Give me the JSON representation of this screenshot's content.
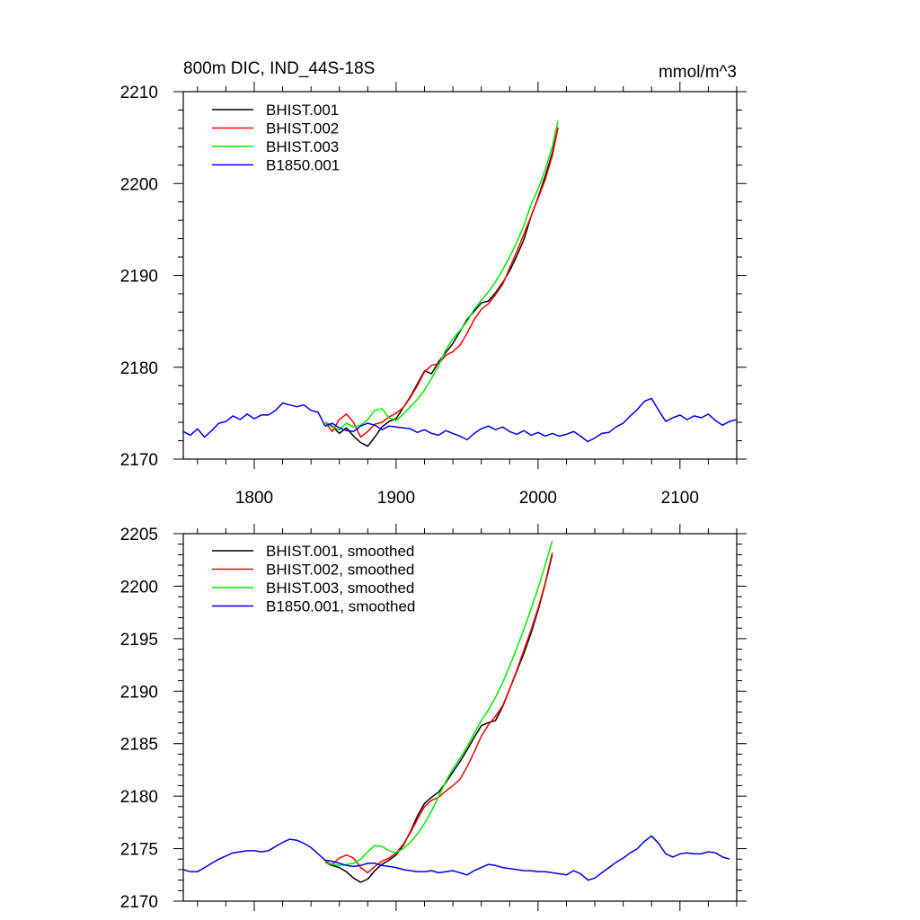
{
  "chart_data": [
    {
      "type": "line",
      "title": "800m DIC, IND_44S-18S",
      "units": "mmol/m^3",
      "xlim": [
        1750,
        2140
      ],
      "ylim": [
        2170,
        2210
      ],
      "xticks": [
        1800,
        1900,
        2000,
        2100
      ],
      "yticks": [
        2170,
        2180,
        2190,
        2200,
        2210
      ],
      "show_x_tick_labels": true,
      "legend_position": "top-left",
      "colors": {
        "axis": "#000000"
      },
      "series": [
        {
          "name": "BHIST.001",
          "color": "#000000",
          "x": [
            1850,
            1855,
            1860,
            1865,
            1870,
            1875,
            1880,
            1885,
            1890,
            1895,
            1900,
            1905,
            1910,
            1915,
            1920,
            1925,
            1930,
            1935,
            1940,
            1945,
            1950,
            1955,
            1960,
            1965,
            1970,
            1975,
            1980,
            1985,
            1990,
            1995,
            2000,
            2005,
            2010,
            2014
          ],
          "y": [
            2174.0,
            2173.6,
            2172.8,
            2173.4,
            2172.5,
            2171.8,
            2171.4,
            2172.4,
            2173.5,
            2174.1,
            2174.4,
            2175.6,
            2176.8,
            2178.2,
            2179.6,
            2179.3,
            2180.6,
            2181.6,
            2182.6,
            2183.9,
            2185.2,
            2186.1,
            2187.0,
            2187.2,
            2188.1,
            2189.2,
            2190.5,
            2192.1,
            2193.9,
            2196.4,
            2198.5,
            2200.8,
            2203.3,
            2206.1
          ]
        },
        {
          "name": "BHIST.002",
          "color": "#ff0000",
          "x": [
            1850,
            1855,
            1860,
            1865,
            1870,
            1875,
            1880,
            1885,
            1890,
            1895,
            1900,
            1905,
            1910,
            1915,
            1920,
            1925,
            1930,
            1935,
            1940,
            1945,
            1950,
            1955,
            1960,
            1965,
            1970,
            1975,
            1980,
            1985,
            1990,
            1995,
            2000,
            2005,
            2010,
            2014
          ],
          "y": [
            2174.0,
            2173.0,
            2174.3,
            2174.9,
            2174.0,
            2172.4,
            2173.0,
            2173.8,
            2174.0,
            2174.6,
            2175.0,
            2175.6,
            2176.7,
            2178.0,
            2179.5,
            2180.2,
            2180.4,
            2181.3,
            2181.7,
            2182.4,
            2183.7,
            2185.2,
            2186.3,
            2186.9,
            2187.9,
            2189.0,
            2190.8,
            2192.6,
            2194.5,
            2196.4,
            2198.4,
            2200.4,
            2203.0,
            2206.0
          ]
        },
        {
          "name": "BHIST.003",
          "color": "#00ee00",
          "x": [
            1850,
            1855,
            1860,
            1865,
            1870,
            1875,
            1880,
            1885,
            1890,
            1895,
            1900,
            1905,
            1910,
            1915,
            1920,
            1925,
            1930,
            1935,
            1940,
            1945,
            1950,
            1955,
            1960,
            1965,
            1970,
            1975,
            1980,
            1985,
            1990,
            1995,
            2000,
            2005,
            2010,
            2014
          ],
          "y": [
            2174.0,
            2173.5,
            2173.2,
            2173.9,
            2173.5,
            2173.7,
            2174.3,
            2175.3,
            2175.5,
            2174.5,
            2174.2,
            2174.9,
            2175.7,
            2176.5,
            2177.5,
            2178.8,
            2180.2,
            2181.9,
            2183.1,
            2184.0,
            2185.0,
            2186.3,
            2187.3,
            2188.2,
            2189.3,
            2190.6,
            2192.0,
            2193.6,
            2195.4,
            2197.7,
            2199.4,
            2201.5,
            2204.0,
            2206.8
          ]
        },
        {
          "name": "B1850.001",
          "color": "#0000ee",
          "x": [
            1750,
            1755,
            1760,
            1765,
            1770,
            1775,
            1780,
            1785,
            1790,
            1795,
            1800,
            1805,
            1810,
            1815,
            1820,
            1825,
            1830,
            1835,
            1840,
            1845,
            1850,
            1855,
            1860,
            1865,
            1870,
            1875,
            1880,
            1885,
            1890,
            1895,
            1900,
            1905,
            1910,
            1915,
            1920,
            1925,
            1930,
            1935,
            1940,
            1945,
            1950,
            1955,
            1960,
            1965,
            1970,
            1975,
            1980,
            1985,
            1990,
            1995,
            2000,
            2005,
            2010,
            2015,
            2020,
            2025,
            2030,
            2035,
            2040,
            2045,
            2050,
            2055,
            2060,
            2065,
            2070,
            2075,
            2080,
            2085,
            2090,
            2095,
            2100,
            2105,
            2110,
            2115,
            2120,
            2125,
            2130,
            2135,
            2140
          ],
          "y": [
            2173.0,
            2172.6,
            2173.3,
            2172.4,
            2173.1,
            2173.9,
            2174.1,
            2174.7,
            2174.3,
            2174.9,
            2174.4,
            2174.8,
            2174.8,
            2175.3,
            2176.1,
            2175.9,
            2175.7,
            2175.9,
            2175.3,
            2175.1,
            2173.6,
            2173.9,
            2173.4,
            2173.1,
            2173.0,
            2173.6,
            2173.9,
            2173.7,
            2173.2,
            2173.6,
            2173.5,
            2173.4,
            2173.3,
            2172.9,
            2173.2,
            2172.8,
            2172.6,
            2173.1,
            2172.8,
            2172.5,
            2172.1,
            2172.8,
            2173.3,
            2173.6,
            2173.2,
            2173.5,
            2173.0,
            2172.7,
            2173.1,
            2172.6,
            2172.9,
            2172.5,
            2172.8,
            2172.5,
            2172.7,
            2173.0,
            2172.5,
            2171.9,
            2172.3,
            2172.8,
            2172.9,
            2173.5,
            2173.9,
            2174.7,
            2175.4,
            2176.3,
            2176.6,
            2175.3,
            2174.1,
            2174.5,
            2174.8,
            2174.3,
            2174.7,
            2174.5,
            2174.9,
            2174.2,
            2173.7,
            2174.1,
            2174.3
          ]
        }
      ]
    },
    {
      "type": "line",
      "title": "",
      "xlim": [
        1750,
        2140
      ],
      "ylim": [
        2170,
        2205
      ],
      "xticks": [
        1800,
        1900,
        2000,
        2100
      ],
      "yticks": [
        2170,
        2175,
        2180,
        2185,
        2190,
        2195,
        2200,
        2205
      ],
      "show_x_tick_labels": false,
      "legend_position": "top-left",
      "colors": {
        "axis": "#000000"
      },
      "series": [
        {
          "name": "BHIST.001, smoothed",
          "color": "#000000",
          "x": [
            1850,
            1855,
            1860,
            1865,
            1870,
            1875,
            1880,
            1885,
            1890,
            1895,
            1900,
            1905,
            1910,
            1915,
            1920,
            1925,
            1930,
            1935,
            1940,
            1945,
            1950,
            1955,
            1960,
            1965,
            1970,
            1975,
            1980,
            1985,
            1990,
            1995,
            2000,
            2005,
            2010
          ],
          "y": [
            2173.7,
            2173.4,
            2173.2,
            2172.8,
            2172.2,
            2171.8,
            2172.1,
            2172.9,
            2173.5,
            2173.9,
            2174.4,
            2175.3,
            2176.6,
            2178.1,
            2179.3,
            2179.9,
            2180.4,
            2181.3,
            2182.3,
            2183.3,
            2184.4,
            2185.6,
            2186.7,
            2187.0,
            2187.2,
            2188.5,
            2190.2,
            2191.9,
            2193.6,
            2195.5,
            2197.7,
            2200.2,
            2203.0
          ]
        },
        {
          "name": "BHIST.002, smoothed",
          "color": "#ff0000",
          "x": [
            1850,
            1855,
            1860,
            1865,
            1870,
            1875,
            1880,
            1885,
            1890,
            1895,
            1900,
            1905,
            1910,
            1915,
            1920,
            1925,
            1930,
            1935,
            1940,
            1945,
            1950,
            1955,
            1960,
            1965,
            1970,
            1975,
            1980,
            1985,
            1990,
            1995,
            2000,
            2005,
            2010
          ],
          "y": [
            2173.8,
            2173.5,
            2174.1,
            2174.4,
            2174.1,
            2173.2,
            2172.7,
            2173.3,
            2173.8,
            2174.1,
            2174.6,
            2175.4,
            2176.5,
            2177.8,
            2179.0,
            2179.6,
            2179.9,
            2180.5,
            2181.0,
            2181.6,
            2182.8,
            2184.2,
            2185.7,
            2186.8,
            2187.6,
            2188.6,
            2190.2,
            2192.0,
            2193.9,
            2195.8,
            2197.9,
            2200.3,
            2203.2
          ]
        },
        {
          "name": "BHIST.003, smoothed",
          "color": "#00ee00",
          "x": [
            1850,
            1855,
            1860,
            1865,
            1870,
            1875,
            1880,
            1885,
            1890,
            1895,
            1900,
            1905,
            1910,
            1915,
            1920,
            1925,
            1930,
            1935,
            1940,
            1945,
            1950,
            1955,
            1960,
            1965,
            1970,
            1975,
            1980,
            1985,
            1990,
            1995,
            2000,
            2005,
            2010
          ],
          "y": [
            2173.7,
            2173.5,
            2173.4,
            2173.5,
            2173.6,
            2174.0,
            2174.7,
            2175.3,
            2175.2,
            2174.8,
            2174.6,
            2175.0,
            2175.6,
            2176.4,
            2177.4,
            2178.6,
            2180.0,
            2181.4,
            2182.6,
            2183.6,
            2184.7,
            2186.0,
            2187.2,
            2188.2,
            2189.4,
            2190.8,
            2192.4,
            2194.1,
            2195.9,
            2197.8,
            2199.8,
            2202.0,
            2204.3
          ]
        },
        {
          "name": "B1850.001, smoothed",
          "color": "#0000ee",
          "x": [
            1750,
            1755,
            1760,
            1765,
            1770,
            1775,
            1780,
            1785,
            1790,
            1795,
            1800,
            1805,
            1810,
            1815,
            1820,
            1825,
            1830,
            1835,
            1840,
            1845,
            1850,
            1855,
            1860,
            1865,
            1870,
            1875,
            1880,
            1885,
            1890,
            1895,
            1900,
            1905,
            1910,
            1915,
            1920,
            1925,
            1930,
            1935,
            1940,
            1945,
            1950,
            1955,
            1960,
            1965,
            1970,
            1975,
            1980,
            1985,
            1990,
            1995,
            2000,
            2005,
            2010,
            2015,
            2020,
            2025,
            2030,
            2035,
            2040,
            2045,
            2050,
            2055,
            2060,
            2065,
            2070,
            2075,
            2080,
            2085,
            2090,
            2095,
            2100,
            2105,
            2110,
            2115,
            2120,
            2125,
            2130,
            2135
          ],
          "y": [
            2173.0,
            2172.8,
            2172.8,
            2173.2,
            2173.6,
            2174.0,
            2174.3,
            2174.6,
            2174.7,
            2174.8,
            2174.8,
            2174.7,
            2174.8,
            2175.2,
            2175.6,
            2175.9,
            2175.8,
            2175.5,
            2175.1,
            2174.5,
            2173.9,
            2173.8,
            2173.6,
            2173.4,
            2173.3,
            2173.4,
            2173.6,
            2173.6,
            2173.4,
            2173.3,
            2173.2,
            2173.0,
            2172.9,
            2172.8,
            2172.8,
            2172.9,
            2172.7,
            2172.8,
            2172.9,
            2172.7,
            2172.5,
            2172.9,
            2173.2,
            2173.5,
            2173.4,
            2173.2,
            2173.1,
            2173.0,
            2172.9,
            2172.9,
            2172.8,
            2172.8,
            2172.7,
            2172.6,
            2172.5,
            2172.9,
            2172.6,
            2172.0,
            2172.2,
            2172.7,
            2173.2,
            2173.7,
            2174.1,
            2174.6,
            2175.0,
            2175.7,
            2176.2,
            2175.5,
            2174.5,
            2174.2,
            2174.5,
            2174.6,
            2174.5,
            2174.5,
            2174.7,
            2174.6,
            2174.2,
            2174.0
          ]
        }
      ]
    }
  ]
}
